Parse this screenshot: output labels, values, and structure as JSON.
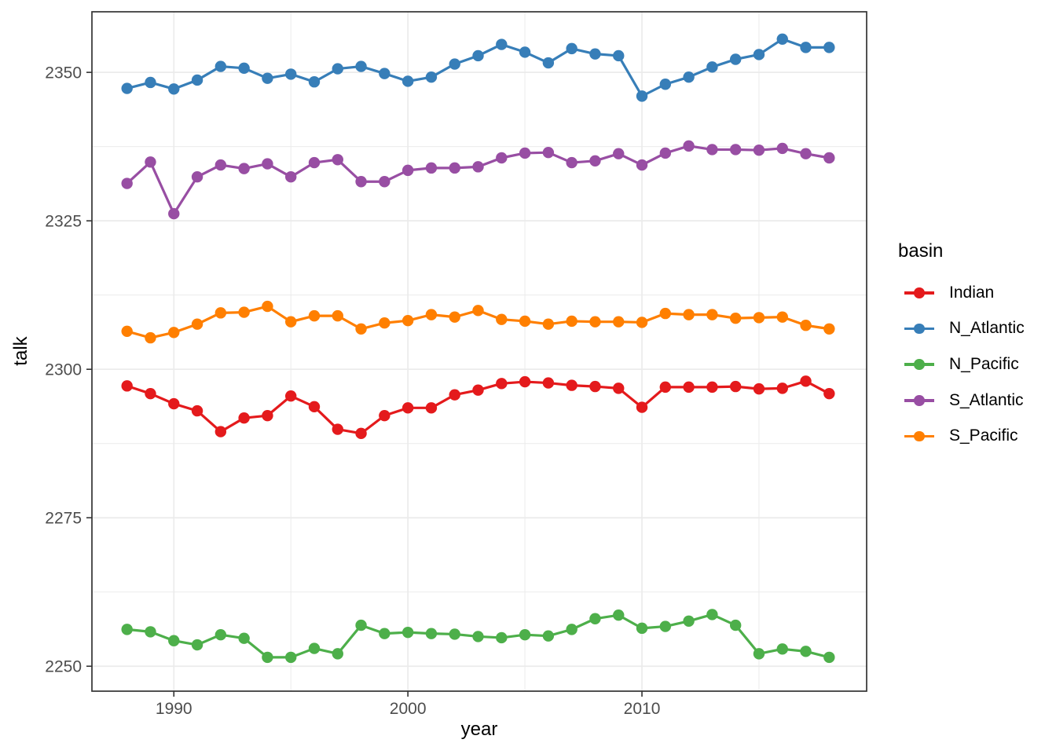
{
  "chart_data": {
    "type": "line",
    "title": "",
    "xlabel": "year",
    "ylabel": "talk",
    "legend": {
      "title": "basin",
      "position": "right",
      "entries": [
        "Indian",
        "N_Atlantic",
        "N_Pacific",
        "S_Atlantic",
        "S_Pacific"
      ]
    },
    "x": [
      1988,
      1989,
      1990,
      1991,
      1992,
      1993,
      1994,
      1995,
      1996,
      1997,
      1998,
      1999,
      2000,
      2001,
      2002,
      2003,
      2004,
      2005,
      2006,
      2007,
      2008,
      2009,
      2010,
      2011,
      2012,
      2013,
      2014,
      2015,
      2016,
      2017,
      2018
    ],
    "series": [
      {
        "name": "Indian",
        "color": "#e41a1c",
        "values": [
          2297.2,
          2295.9,
          2294.2,
          2293.0,
          2289.5,
          2291.8,
          2292.2,
          2295.5,
          2293.7,
          2289.9,
          2289.2,
          2292.2,
          2293.5,
          2293.5,
          2295.7,
          2296.5,
          2297.6,
          2297.9,
          2297.7,
          2297.3,
          2297.1,
          2296.8,
          2293.6,
          2297.0,
          2297.0,
          2297.0,
          2297.1,
          2296.7,
          2296.8,
          2298.0,
          2295.9
        ]
      },
      {
        "name": "N_Atlantic",
        "color": "#377eb8",
        "values": [
          2347.3,
          2348.3,
          2347.2,
          2348.7,
          2351.0,
          2350.7,
          2349.0,
          2349.7,
          2348.4,
          2350.6,
          2351.0,
          2349.8,
          2348.5,
          2349.2,
          2351.4,
          2352.8,
          2354.7,
          2353.4,
          2351.6,
          2354.0,
          2353.1,
          2352.8,
          2346.0,
          2348.0,
          2349.2,
          2350.9,
          2352.2,
          2353.0,
          2355.6,
          2354.2,
          2354.2
        ]
      },
      {
        "name": "N_Pacific",
        "color": "#4daf4a",
        "values": [
          2256.2,
          2255.8,
          2254.3,
          2253.6,
          2255.3,
          2254.7,
          2251.5,
          2251.5,
          2253.0,
          2252.1,
          2256.9,
          2255.5,
          2255.7,
          2255.5,
          2255.4,
          2255.0,
          2254.8,
          2255.3,
          2255.1,
          2256.2,
          2258.0,
          2258.6,
          2256.4,
          2256.7,
          2257.6,
          2258.7,
          2256.9,
          2252.1,
          2252.9,
          2252.5,
          2251.5
        ]
      },
      {
        "name": "S_Atlantic",
        "color": "#984ea3",
        "values": [
          2331.3,
          2334.9,
          2326.2,
          2332.4,
          2334.4,
          2333.8,
          2334.6,
          2332.4,
          2334.8,
          2335.3,
          2331.6,
          2331.6,
          2333.5,
          2333.9,
          2333.9,
          2334.1,
          2335.6,
          2336.4,
          2336.5,
          2334.8,
          2335.1,
          2336.3,
          2334.4,
          2336.4,
          2337.6,
          2337.0,
          2337.0,
          2336.9,
          2337.2,
          2336.3,
          2335.6
        ]
      },
      {
        "name": "S_Pacific",
        "color": "#ff7f00",
        "values": [
          2306.4,
          2305.3,
          2306.2,
          2307.6,
          2309.5,
          2309.6,
          2310.6,
          2308.0,
          2309.0,
          2309.0,
          2306.8,
          2307.8,
          2308.2,
          2309.2,
          2308.8,
          2309.9,
          2308.4,
          2308.1,
          2307.6,
          2308.1,
          2308.0,
          2308.0,
          2307.9,
          2309.4,
          2309.2,
          2309.2,
          2308.6,
          2308.7,
          2308.8,
          2307.4,
          2306.8
        ]
      }
    ],
    "axes": {
      "xlim": [
        1986.5,
        2019.6
      ],
      "ylim": [
        2245.8,
        2360.2
      ],
      "x_ticks": [
        1990,
        2000,
        2010
      ],
      "x_tick_labels": [
        "1990",
        "2000",
        "2010"
      ],
      "x_minor": [
        1995,
        2005,
        2015
      ],
      "y_ticks": [
        2250,
        2275,
        2300,
        2325,
        2350
      ],
      "y_tick_labels": [
        "2250",
        "2275",
        "2300",
        "2325",
        "2350"
      ],
      "y_minor": [
        2262.5,
        2287.5,
        2312.5,
        2337.5
      ],
      "grid": true
    },
    "style": {
      "background": "#ffffff",
      "grid_color": "#ebebeb",
      "border_color": "#333333",
      "tick_color": "#333333",
      "tick_label_color": "#4d4d4d",
      "text_color": "#000000"
    }
  }
}
